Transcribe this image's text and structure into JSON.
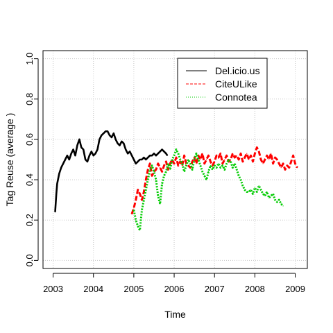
{
  "chart_data": {
    "type": "line",
    "title": "",
    "xlabel": "Time",
    "ylabel": "Tag Reuse (average   )",
    "xlim": [
      2002.75,
      2009.3
    ],
    "ylim": [
      -0.04,
      1.04
    ],
    "x_ticks": [
      2003,
      2004,
      2005,
      2006,
      2007,
      2008,
      2009
    ],
    "x_tick_labels": [
      "2003",
      "2004",
      "2005",
      "2006",
      "2007",
      "2008",
      "2009"
    ],
    "y_ticks": [
      0.0,
      0.2,
      0.4,
      0.6,
      0.8,
      1.0
    ],
    "y_tick_labels": [
      "0.0",
      "0.2",
      "0.4",
      "0.6",
      "0.8",
      "1.0"
    ],
    "grid": true,
    "legend_position": "top-right",
    "series": [
      {
        "name": "Del.icio.us",
        "color": "#000000",
        "line_style": "solid",
        "x": [
          2003.05,
          2003.08,
          2003.1,
          2003.15,
          2003.2,
          2003.25,
          2003.3,
          2003.35,
          2003.4,
          2003.45,
          2003.5,
          2003.55,
          2003.6,
          2003.65,
          2003.7,
          2003.75,
          2003.8,
          2003.85,
          2003.9,
          2003.95,
          2004.0,
          2004.05,
          2004.1,
          2004.15,
          2004.2,
          2004.25,
          2004.3,
          2004.35,
          2004.4,
          2004.45,
          2004.5,
          2004.55,
          2004.6,
          2004.65,
          2004.7,
          2004.75,
          2004.8,
          2004.85,
          2004.9,
          2004.95,
          2005.0,
          2005.05,
          2005.1,
          2005.15,
          2005.2,
          2005.25,
          2005.3,
          2005.35,
          2005.4,
          2005.45,
          2005.5,
          2005.55,
          2005.6,
          2005.65,
          2005.7,
          2005.75,
          2005.8,
          2005.83
        ],
        "y": [
          0.24,
          0.33,
          0.38,
          0.43,
          0.46,
          0.48,
          0.5,
          0.52,
          0.5,
          0.53,
          0.55,
          0.52,
          0.57,
          0.6,
          0.56,
          0.55,
          0.5,
          0.49,
          0.52,
          0.54,
          0.52,
          0.53,
          0.55,
          0.6,
          0.62,
          0.63,
          0.64,
          0.64,
          0.62,
          0.61,
          0.63,
          0.6,
          0.58,
          0.57,
          0.59,
          0.58,
          0.55,
          0.53,
          0.54,
          0.52,
          0.5,
          0.48,
          0.49,
          0.5,
          0.5,
          0.51,
          0.5,
          0.51,
          0.52,
          0.52,
          0.53,
          0.52,
          0.53,
          0.54,
          0.55,
          0.54,
          0.53,
          0.52
        ]
      },
      {
        "name": "CiteULike",
        "color": "#ff0000",
        "line_style": "dashed",
        "x": [
          2004.95,
          2005.0,
          2005.05,
          2005.1,
          2005.15,
          2005.2,
          2005.25,
          2005.3,
          2005.35,
          2005.4,
          2005.45,
          2005.5,
          2005.55,
          2005.6,
          2005.65,
          2005.7,
          2005.75,
          2005.8,
          2005.85,
          2005.9,
          2005.95,
          2006.0,
          2006.05,
          2006.1,
          2006.15,
          2006.2,
          2006.25,
          2006.3,
          2006.35,
          2006.4,
          2006.45,
          2006.5,
          2006.55,
          2006.6,
          2006.65,
          2006.7,
          2006.75,
          2006.8,
          2006.85,
          2006.9,
          2006.95,
          2007.0,
          2007.05,
          2007.1,
          2007.15,
          2007.2,
          2007.25,
          2007.3,
          2007.35,
          2007.4,
          2007.45,
          2007.5,
          2007.55,
          2007.6,
          2007.65,
          2007.7,
          2007.75,
          2007.8,
          2007.85,
          2007.9,
          2007.95,
          2008.0,
          2008.05,
          2008.1,
          2008.15,
          2008.2,
          2008.25,
          2008.3,
          2008.35,
          2008.4,
          2008.45,
          2008.5,
          2008.55,
          2008.6,
          2008.65,
          2008.7,
          2008.75,
          2008.8,
          2008.85,
          2008.9,
          2008.95,
          2009.0,
          2009.05
        ],
        "y": [
          0.23,
          0.26,
          0.3,
          0.35,
          0.33,
          0.3,
          0.34,
          0.4,
          0.45,
          0.48,
          0.42,
          0.44,
          0.45,
          0.48,
          0.46,
          0.44,
          0.47,
          0.49,
          0.45,
          0.48,
          0.5,
          0.48,
          0.51,
          0.47,
          0.49,
          0.47,
          0.52,
          0.48,
          0.47,
          0.46,
          0.49,
          0.51,
          0.48,
          0.52,
          0.5,
          0.53,
          0.48,
          0.5,
          0.52,
          0.49,
          0.47,
          0.49,
          0.52,
          0.51,
          0.53,
          0.48,
          0.5,
          0.52,
          0.49,
          0.5,
          0.53,
          0.51,
          0.52,
          0.5,
          0.53,
          0.49,
          0.51,
          0.53,
          0.5,
          0.52,
          0.49,
          0.53,
          0.56,
          0.54,
          0.5,
          0.48,
          0.5,
          0.52,
          0.5,
          0.53,
          0.48,
          0.51,
          0.5,
          0.48,
          0.46,
          0.48,
          0.45,
          0.47,
          0.46,
          0.49,
          0.52,
          0.48,
          0.46
        ]
      },
      {
        "name": "Connotea",
        "color": "#00cc00",
        "line_style": "dotted",
        "x": [
          2005.0,
          2005.05,
          2005.1,
          2005.15,
          2005.2,
          2005.25,
          2005.3,
          2005.35,
          2005.4,
          2005.45,
          2005.5,
          2005.55,
          2005.6,
          2005.65,
          2005.7,
          2005.75,
          2005.8,
          2005.85,
          2005.9,
          2005.95,
          2006.0,
          2006.05,
          2006.1,
          2006.15,
          2006.2,
          2006.25,
          2006.3,
          2006.35,
          2006.4,
          2006.45,
          2006.5,
          2006.55,
          2006.6,
          2006.65,
          2006.7,
          2006.75,
          2006.8,
          2006.85,
          2006.9,
          2006.95,
          2007.0,
          2007.05,
          2007.1,
          2007.15,
          2007.2,
          2007.25,
          2007.3,
          2007.35,
          2007.4,
          2007.45,
          2007.5,
          2007.55,
          2007.6,
          2007.65,
          2007.7,
          2007.75,
          2007.8,
          2007.85,
          2007.9,
          2007.95,
          2008.0,
          2008.05,
          2008.1,
          2008.15,
          2008.2,
          2008.25,
          2008.3,
          2008.35,
          2008.4,
          2008.45,
          2008.5,
          2008.55,
          2008.6,
          2008.65,
          2008.7
        ],
        "y": [
          0.25,
          0.2,
          0.17,
          0.15,
          0.25,
          0.3,
          0.35,
          0.4,
          0.45,
          0.47,
          0.44,
          0.4,
          0.32,
          0.28,
          0.38,
          0.42,
          0.44,
          0.48,
          0.45,
          0.5,
          0.52,
          0.55,
          0.53,
          0.5,
          0.48,
          0.44,
          0.47,
          0.5,
          0.48,
          0.45,
          0.5,
          0.53,
          0.5,
          0.47,
          0.44,
          0.42,
          0.4,
          0.44,
          0.47,
          0.45,
          0.47,
          0.46,
          0.48,
          0.46,
          0.47,
          0.45,
          0.48,
          0.5,
          0.49,
          0.46,
          0.48,
          0.45,
          0.42,
          0.4,
          0.37,
          0.35,
          0.34,
          0.34,
          0.35,
          0.33,
          0.36,
          0.34,
          0.37,
          0.35,
          0.33,
          0.32,
          0.34,
          0.31,
          0.32,
          0.33,
          0.3,
          0.29,
          0.3,
          0.28,
          0.27
        ]
      }
    ]
  }
}
